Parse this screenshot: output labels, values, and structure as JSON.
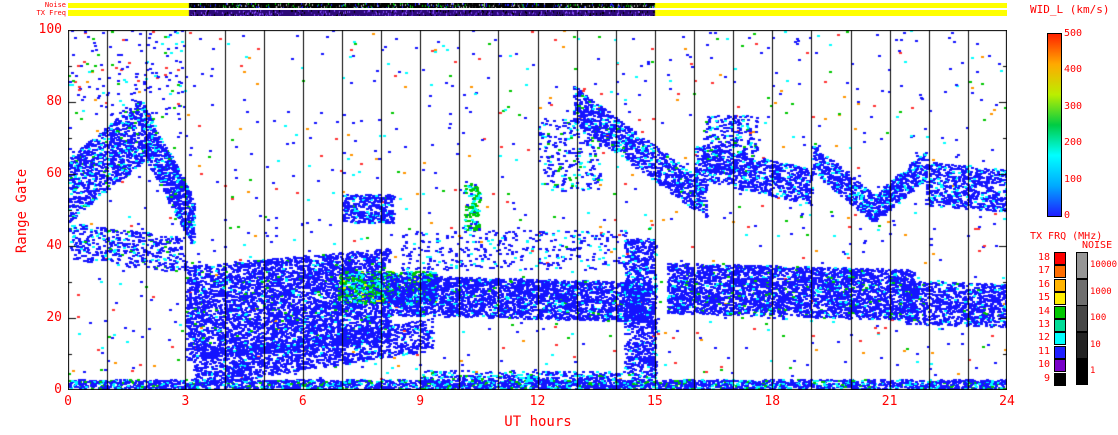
{
  "chart_data": {
    "type": "heatmap",
    "title": "",
    "xlabel": "UT hours",
    "ylabel": "Range Gate",
    "xlim": [
      0,
      24
    ],
    "ylim": [
      0,
      100
    ],
    "xticks": [
      0,
      3,
      6,
      9,
      12,
      15,
      18,
      21,
      24
    ],
    "yticks": [
      0,
      20,
      40,
      60,
      80,
      100
    ],
    "grid": {
      "vertical_line_every_hour": true
    },
    "axis_color": "#000000",
    "label_color": "#ff0000",
    "top_strips": {
      "noise_label": "Noise",
      "txfreq_label": "TX Freq",
      "noise_strip": {
        "base_segments": [
          {
            "x0": 0,
            "x1": 3.1,
            "color": "#ffff00"
          },
          {
            "x0": 3.1,
            "x1": 15.0,
            "color": "#000000",
            "speckle": [
              "#2a2a2a",
              "#1e1eff",
              "#00c800",
              "#b4b4b4"
            ]
          },
          {
            "x0": 15.0,
            "x1": 24,
            "color": "#ffff00"
          }
        ]
      },
      "txfreq_strip": {
        "base_segments": [
          {
            "x0": 0,
            "x1": 3.1,
            "color": "#ffff00"
          },
          {
            "x0": 3.1,
            "x1": 15.0,
            "color": "#2d0a78",
            "speckle": [
              "#5a28c8",
              "#000000",
              "#8c50ff"
            ]
          },
          {
            "x0": 15.0,
            "x1": 24,
            "color": "#ffff00"
          }
        ]
      }
    },
    "colorbar": {
      "label": "WID_L (km/s)",
      "ticks": [
        0,
        100,
        200,
        300,
        400,
        500
      ],
      "stops_bottom_to_top": [
        "#1e1eff",
        "#00aaff",
        "#00ffff",
        "#00cc44",
        "#bbee00",
        "#ffaa00",
        "#ff2200"
      ]
    },
    "tx_frq_legend": {
      "label": "TX FRQ (MHz)",
      "entries": [
        {
          "value": "18",
          "color": "#ff0000"
        },
        {
          "value": "17",
          "color": "#ff6e00"
        },
        {
          "value": "16",
          "color": "#ffb400"
        },
        {
          "value": "15",
          "color": "#ffee00"
        },
        {
          "value": "14",
          "color": "#00c800"
        },
        {
          "value": "13",
          "color": "#00dc96"
        },
        {
          "value": "12",
          "color": "#00ffff"
        },
        {
          "value": "11",
          "color": "#1e1eff"
        },
        {
          "value": "10",
          "color": "#7800c8"
        },
        {
          "value": "9",
          "color": "#000000"
        }
      ]
    },
    "noise_legend": {
      "label": "NOISE",
      "entries": [
        {
          "value": "10000",
          "color": "#969696"
        },
        {
          "value": "1000",
          "color": "#6e6e6e"
        },
        {
          "value": "100",
          "color": "#464646"
        },
        {
          "value": "10",
          "color": "#232323"
        },
        {
          "value": "1",
          "color": "#000000"
        }
      ]
    },
    "palette": {
      "b": "#1414ff",
      "db": "#0000b4",
      "c": "#00ffff",
      "g": "#00c800",
      "r": "#ff3232",
      "o": "#ff9600",
      "y": "#ffff00"
    },
    "features": [
      {
        "name": "scatter-background",
        "x": [
          0,
          24
        ],
        "y": [
          2,
          100
        ],
        "n": 1100,
        "colors": {
          "b": 0.5,
          "c": 0.13,
          "g": 0.12,
          "r": 0.15,
          "o": 0.1
        }
      },
      {
        "name": "bottom-band",
        "x": [
          0,
          24
        ],
        "y": [
          0,
          2.5
        ],
        "n": 2600,
        "colors": {
          "b": 0.72,
          "c": 0.2,
          "g": 0.08
        }
      },
      {
        "name": "bottom-band-mid-dense",
        "x": [
          9,
          15
        ],
        "y": [
          0,
          5
        ],
        "n": 600,
        "colors": {
          "b": 0.7,
          "c": 0.25,
          "g": 0.05
        }
      },
      {
        "name": "early-rise-band",
        "band": true,
        "x": [
          0,
          1.9
        ],
        "yc": [
          55,
          72
        ],
        "hw": 9,
        "n": 1000,
        "colors": {
          "b": 0.8,
          "c": 0.15,
          "g": 0.05
        }
      },
      {
        "name": "early-fall-band",
        "band": true,
        "x": [
          1.9,
          3.2
        ],
        "yc": [
          72,
          46
        ],
        "hw": 7,
        "n": 800,
        "colors": {
          "b": 0.82,
          "c": 0.15,
          "g": 0.03
        }
      },
      {
        "name": "early-low-band",
        "band": true,
        "x": [
          0,
          3
        ],
        "yc": [
          41,
          37
        ],
        "hw": 5,
        "n": 450,
        "colors": {
          "b": 0.8,
          "c": 0.15,
          "g": 0.05
        }
      },
      {
        "name": "early-top-scatter",
        "x": [
          0,
          3
        ],
        "y": [
          75,
          100
        ],
        "n": 150,
        "colors": {
          "b": 0.6,
          "c": 0.2,
          "r": 0.1,
          "g": 0.1
        }
      },
      {
        "name": "main-blob",
        "band": true,
        "x": [
          3,
          8.2
        ],
        "yc": [
          21,
          26
        ],
        "hw": 13,
        "n": 4200,
        "colors": {
          "b": 0.93,
          "c": 0.05,
          "g": 0.02
        }
      },
      {
        "name": "main-blob-tail",
        "band": true,
        "x": [
          3.2,
          9.3
        ],
        "yc": [
          5,
          15
        ],
        "hw": 4.5,
        "n": 1400,
        "colors": {
          "b": 0.95,
          "c": 0.05
        }
      },
      {
        "name": "green-patch",
        "band": true,
        "x": [
          6.9,
          9.4
        ],
        "yc": [
          28,
          28
        ],
        "hw": 4.5,
        "n": 950,
        "colors": {
          "g": 0.38,
          "c": 0.3,
          "b": 0.28,
          "y": 0.04
        }
      },
      {
        "name": "clump-7-8-high",
        "x": [
          7.0,
          8.3
        ],
        "y": [
          46,
          54
        ],
        "n": 350,
        "colors": {
          "b": 0.85,
          "c": 0.15
        }
      },
      {
        "name": "mid-band",
        "band": true,
        "x": [
          8.1,
          14.9
        ],
        "yc": [
          26,
          24
        ],
        "hw": 5.5,
        "n": 2800,
        "colors": {
          "b": 0.9,
          "c": 0.08,
          "g": 0.02
        }
      },
      {
        "name": "mid-upper-sparse",
        "x": [
          8.5,
          14.5
        ],
        "y": [
          33,
          44
        ],
        "n": 350,
        "colors": {
          "b": 0.8,
          "c": 0.2
        }
      },
      {
        "name": "green-streak-10",
        "x": [
          10.1,
          10.5
        ],
        "y": [
          44,
          57
        ],
        "n": 120,
        "colors": {
          "g": 0.6,
          "c": 0.25,
          "b": 0.15
        }
      },
      {
        "name": "cluster-12-13-high",
        "x": [
          12,
          13.6
        ],
        "y": [
          55,
          75
        ],
        "n": 250,
        "colors": {
          "b": 0.75,
          "c": 0.15,
          "g": 0.1
        }
      },
      {
        "name": "pre15-column",
        "x": [
          14.2,
          15.0
        ],
        "y": [
          5,
          42
        ],
        "n": 800,
        "colors": {
          "b": 0.9,
          "c": 0.1
        }
      },
      {
        "name": "descend-band",
        "band": true,
        "x": [
          12.9,
          16.3
        ],
        "yc": [
          79,
          52
        ],
        "hw": 5,
        "n": 1000,
        "colors": {
          "b": 0.85,
          "c": 0.12,
          "g": 0.03
        }
      },
      {
        "name": "late-block",
        "band": true,
        "x": [
          15.3,
          21.6
        ],
        "yc": [
          28,
          26
        ],
        "hw": 7,
        "n": 3200,
        "colors": {
          "b": 0.9,
          "c": 0.07,
          "g": 0.03
        }
      },
      {
        "name": "cluster-16-17-high",
        "x": [
          16.2,
          17.6
        ],
        "y": [
          60,
          76
        ],
        "n": 300,
        "colors": {
          "b": 0.8,
          "c": 0.15,
          "g": 0.05
        }
      },
      {
        "name": "late-high-band",
        "band": true,
        "x": [
          16,
          19
        ],
        "yc": [
          63,
          56
        ],
        "hw": 5,
        "n": 750,
        "colors": {
          "b": 0.85,
          "c": 0.15
        }
      },
      {
        "name": "late-high-v-down",
        "band": true,
        "x": [
          19,
          20.6
        ],
        "yc": [
          64,
          50
        ],
        "hw": 4,
        "n": 450,
        "colors": {
          "b": 0.85,
          "c": 0.15
        }
      },
      {
        "name": "late-high-v-up",
        "band": true,
        "x": [
          20.6,
          21.9
        ],
        "yc": [
          50,
          62
        ],
        "hw": 4,
        "n": 400,
        "colors": {
          "b": 0.85,
          "c": 0.15
        }
      },
      {
        "name": "right-high-band",
        "band": true,
        "x": [
          21.9,
          24
        ],
        "yc": [
          57,
          55
        ],
        "hw": 6,
        "n": 650,
        "colors": {
          "b": 0.85,
          "c": 0.15
        }
      },
      {
        "name": "right-mid-band",
        "band": true,
        "x": [
          21.4,
          24
        ],
        "yc": [
          24,
          23
        ],
        "hw": 6,
        "n": 900,
        "colors": {
          "b": 0.88,
          "c": 0.1,
          "g": 0.02
        }
      }
    ]
  }
}
